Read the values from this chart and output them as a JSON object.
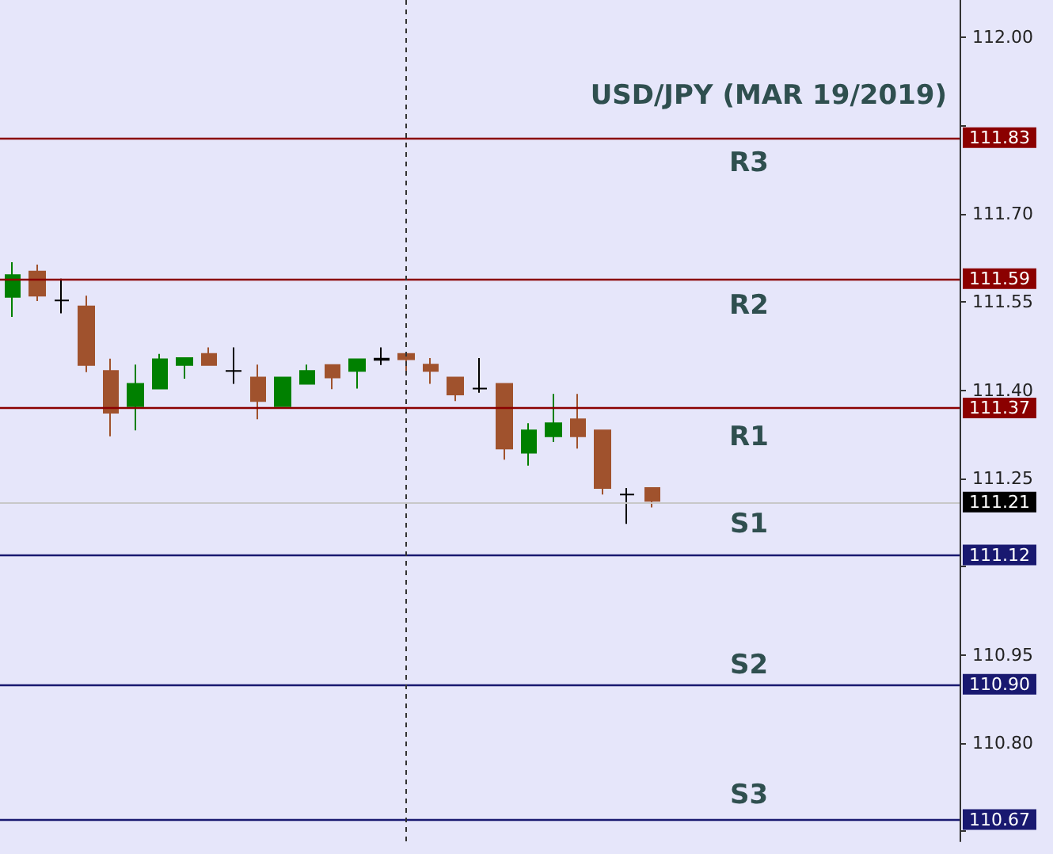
{
  "chart_data": {
    "type": "candlestick",
    "title": "USD/JPY (MAR 19/2019)",
    "categories": [
      null,
      null,
      null,
      null,
      null,
      null,
      null,
      null,
      null,
      null,
      null,
      null,
      null,
      null,
      null,
      null,
      null,
      null,
      null,
      null,
      null,
      null,
      null,
      null,
      null,
      null,
      null,
      null,
      null,
      null,
      null,
      null,
      null,
      null,
      null,
      null,
      null,
      null,
      null
    ],
    "ohlc": [
      [
        111.559,
        111.618,
        111.525,
        111.596
      ],
      [
        111.602,
        111.614,
        111.552,
        111.561
      ],
      [
        111.553,
        111.59,
        111.531,
        111.553
      ],
      [
        111.543,
        111.561,
        111.431,
        111.443
      ],
      [
        111.433,
        111.454,
        111.322,
        111.362
      ],
      [
        111.373,
        111.444,
        111.332,
        111.411
      ],
      [
        111.403,
        111.462,
        111.403,
        111.453
      ],
      [
        111.443,
        111.455,
        111.42,
        111.455
      ],
      [
        111.462,
        111.473,
        111.443,
        111.443
      ],
      [
        111.433,
        111.473,
        111.411,
        111.433
      ],
      [
        111.422,
        111.444,
        111.351,
        111.382
      ],
      [
        111.373,
        111.422,
        111.373,
        111.422
      ],
      [
        111.411,
        111.444,
        111.411,
        111.433
      ],
      [
        111.443,
        111.443,
        111.402,
        111.422
      ],
      [
        111.433,
        111.453,
        111.403,
        111.453
      ],
      [
        111.452,
        111.473,
        111.443,
        111.454
      ],
      [
        111.462,
        111.462,
        111.431,
        111.453
      ],
      [
        111.444,
        111.455,
        111.411,
        111.433
      ],
      [
        111.422,
        111.422,
        111.382,
        111.393
      ],
      [
        111.403,
        111.455,
        111.396,
        111.403
      ],
      [
        111.411,
        111.411,
        111.282,
        111.301
      ],
      [
        111.294,
        111.344,
        111.272,
        111.332
      ],
      [
        111.322,
        111.394,
        111.312,
        111.344
      ],
      [
        111.351,
        111.394,
        111.301,
        111.322
      ],
      [
        111.332,
        111.332,
        111.223,
        111.234
      ],
      [
        111.223,
        111.234,
        111.173,
        111.223
      ],
      [
        111.234,
        111.234,
        111.201,
        111.212
      ],
      null,
      null,
      null,
      null,
      null,
      null,
      null,
      null,
      null,
      null,
      null,
      null
    ],
    "colors": [
      "#008000",
      "#a0522d",
      "#000000",
      "#a0522d",
      "#a0522d",
      "#008000",
      "#008000",
      "#008000",
      "#a0522d",
      "#000000",
      "#a0522d",
      "#008000",
      "#008000",
      "#a0522d",
      "#008000",
      "#000000",
      "#a0522d",
      "#a0522d",
      "#a0522d",
      "#000000",
      "#a0522d",
      "#008000",
      "#008000",
      "#a0522d",
      "#a0522d",
      "#000000",
      "#a0522d",
      null,
      null,
      null,
      null,
      null,
      null,
      null,
      null,
      null,
      null,
      null,
      null
    ],
    "ylim": [
      110.633,
      112.064
    ],
    "yticks": [
      {
        "value": 110.65,
        "label": null
      },
      {
        "value": 110.8,
        "label": "110.80"
      },
      {
        "value": 110.95,
        "label": "110.95"
      },
      {
        "value": 111.1,
        "label": null
      },
      {
        "value": 111.25,
        "label": "111.25"
      },
      {
        "value": 111.4,
        "label": "111.40"
      },
      {
        "value": 111.55,
        "label": "111.55"
      },
      {
        "value": 111.7,
        "label": "111.70"
      },
      {
        "value": 111.85,
        "label": null
      },
      {
        "value": 112.0,
        "label": "112.00"
      }
    ],
    "ref_lines": [
      {
        "axis": "y",
        "value": 111.83,
        "label": "111.83",
        "color": "#8b0000"
      },
      {
        "axis": "y",
        "value": 111.59,
        "label": "111.59",
        "color": "#8b0000"
      },
      {
        "axis": "y",
        "value": 111.37,
        "label": "111.37",
        "color": "#8b0000"
      },
      {
        "axis": "y",
        "value": 111.21,
        "label": "111.21",
        "color": "#c8c8c8"
      },
      {
        "axis": "y",
        "value": 111.12,
        "label": "111.12",
        "color": "#191970"
      },
      {
        "axis": "y",
        "value": 110.9,
        "label": "110.90",
        "color": "#191970"
      },
      {
        "axis": "y",
        "value": 110.67,
        "label": "110.67",
        "color": "#191970"
      }
    ],
    "annotations": [
      "R3",
      "R2",
      "R1",
      "S1",
      "S2",
      "S3"
    ],
    "grid": false
  }
}
